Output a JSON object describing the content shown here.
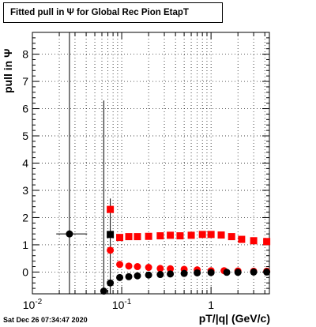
{
  "chart_data": {
    "type": "scatter",
    "title": "Fitted pull in  Ψ  for Global Rec Pion EtapT",
    "xlabel": "pT/|q| (GeV/c)",
    "ylabel": "pull in  Ψ",
    "xscale": "log",
    "xlim": [
      0.01,
      4.5
    ],
    "ylim": [
      -0.8,
      8.8
    ],
    "x_tick_labels": [
      "10^-2",
      "10^-1",
      "1"
    ],
    "y_ticks": [
      0,
      1,
      2,
      3,
      4,
      5,
      6,
      7,
      8
    ],
    "grid": true,
    "series": [
      {
        "color": "#ff0000",
        "marker": "square",
        "points": [
          [
            0.0745,
            2.3
          ],
          [
            0.095,
            1.27
          ],
          [
            0.12,
            1.3
          ],
          [
            0.15,
            1.3
          ],
          [
            0.2,
            1.31
          ],
          [
            0.27,
            1.33
          ],
          [
            0.35,
            1.35
          ],
          [
            0.45,
            1.33
          ],
          [
            0.6,
            1.35
          ],
          [
            0.8,
            1.38
          ],
          [
            1.0,
            1.38
          ],
          [
            1.3,
            1.36
          ],
          [
            1.7,
            1.3
          ],
          [
            2.2,
            1.2
          ],
          [
            3.0,
            1.15
          ],
          [
            4.2,
            1.12
          ]
        ]
      },
      {
        "color": "#ff0000",
        "marker": "circle",
        "points": [
          [
            0.0745,
            0.8
          ],
          [
            0.095,
            0.28
          ],
          [
            0.12,
            0.22
          ],
          [
            0.15,
            0.2
          ],
          [
            0.2,
            0.17
          ],
          [
            0.27,
            0.13
          ],
          [
            0.35,
            0.12
          ],
          [
            0.5,
            0.1
          ],
          [
            0.7,
            0.08
          ],
          [
            1.0,
            0.05
          ],
          [
            1.4,
            0.05
          ],
          [
            2.0,
            0.04
          ],
          [
            3.0,
            0.03
          ],
          [
            4.2,
            0.03
          ]
        ]
      },
      {
        "color": "#000000",
        "marker": "square",
        "points": [
          [
            0.0745,
            1.38
          ]
        ]
      },
      {
        "color": "#000000",
        "marker": "circle",
        "points": [
          [
            0.026,
            1.4
          ],
          [
            0.063,
            -0.7
          ],
          [
            0.0745,
            -0.4
          ],
          [
            0.095,
            -0.2
          ],
          [
            0.12,
            -0.17
          ],
          [
            0.15,
            -0.14
          ],
          [
            0.2,
            -0.11
          ],
          [
            0.27,
            -0.09
          ],
          [
            0.35,
            -0.07
          ],
          [
            0.5,
            -0.05
          ],
          [
            0.7,
            -0.03
          ],
          [
            1.0,
            -0.02
          ],
          [
            1.5,
            -0.01
          ],
          [
            2.0,
            -0.01
          ],
          [
            3.0,
            0.0
          ],
          [
            4.2,
            0.0
          ]
        ]
      }
    ]
  },
  "footer": {
    "date": "Sat Dec 26 07:34:47 2020"
  }
}
